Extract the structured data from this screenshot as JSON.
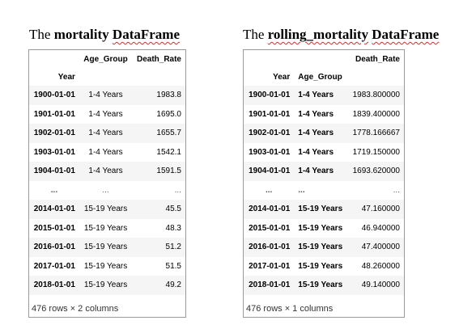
{
  "left": {
    "title_prefix": "The ",
    "title_bold1": "mortality",
    "title_bold2": "DataFrame",
    "col_age": "Age_Group",
    "col_rate": "Death_Rate",
    "index_name": "Year",
    "rows": [
      [
        "1900-01-01",
        "1-4 Years",
        "1983.8"
      ],
      [
        "1901-01-01",
        "1-4 Years",
        "1695.0"
      ],
      [
        "1902-01-01",
        "1-4 Years",
        "1655.7"
      ],
      [
        "1903-01-01",
        "1-4 Years",
        "1542.1"
      ],
      [
        "1904-01-01",
        "1-4 Years",
        "1591.5"
      ],
      [
        "...",
        "...",
        "..."
      ],
      [
        "2014-01-01",
        "15-19 Years",
        "45.5"
      ],
      [
        "2015-01-01",
        "15-19 Years",
        "48.3"
      ],
      [
        "2016-01-01",
        "15-19 Years",
        "51.2"
      ],
      [
        "2017-01-01",
        "15-19 Years",
        "51.5"
      ],
      [
        "2018-01-01",
        "15-19 Years",
        "49.2"
      ]
    ],
    "footer": "476 rows × 2 columns"
  },
  "right": {
    "title_prefix": "The ",
    "title_bold1": "rolling_mortality",
    "title_bold2": "DataFrame",
    "col_rate": "Death_Rate",
    "index_year": "Year",
    "index_age": "Age_Group",
    "rows": [
      [
        "1900-01-01",
        "1-4 Years",
        "1983.800000"
      ],
      [
        "1901-01-01",
        "1-4 Years",
        "1839.400000"
      ],
      [
        "1902-01-01",
        "1-4 Years",
        "1778.166667"
      ],
      [
        "1903-01-01",
        "1-4 Years",
        "1719.150000"
      ],
      [
        "1904-01-01",
        "1-4 Years",
        "1693.620000"
      ],
      [
        "...",
        "...",
        "..."
      ],
      [
        "2014-01-01",
        "15-19 Years",
        "47.160000"
      ],
      [
        "2015-01-01",
        "15-19 Years",
        "46.940000"
      ],
      [
        "2016-01-01",
        "15-19 Years",
        "47.400000"
      ],
      [
        "2017-01-01",
        "15-19 Years",
        "48.260000"
      ],
      [
        "2018-01-01",
        "15-19 Years",
        "49.140000"
      ]
    ],
    "footer": "476 rows × 1 columns"
  }
}
